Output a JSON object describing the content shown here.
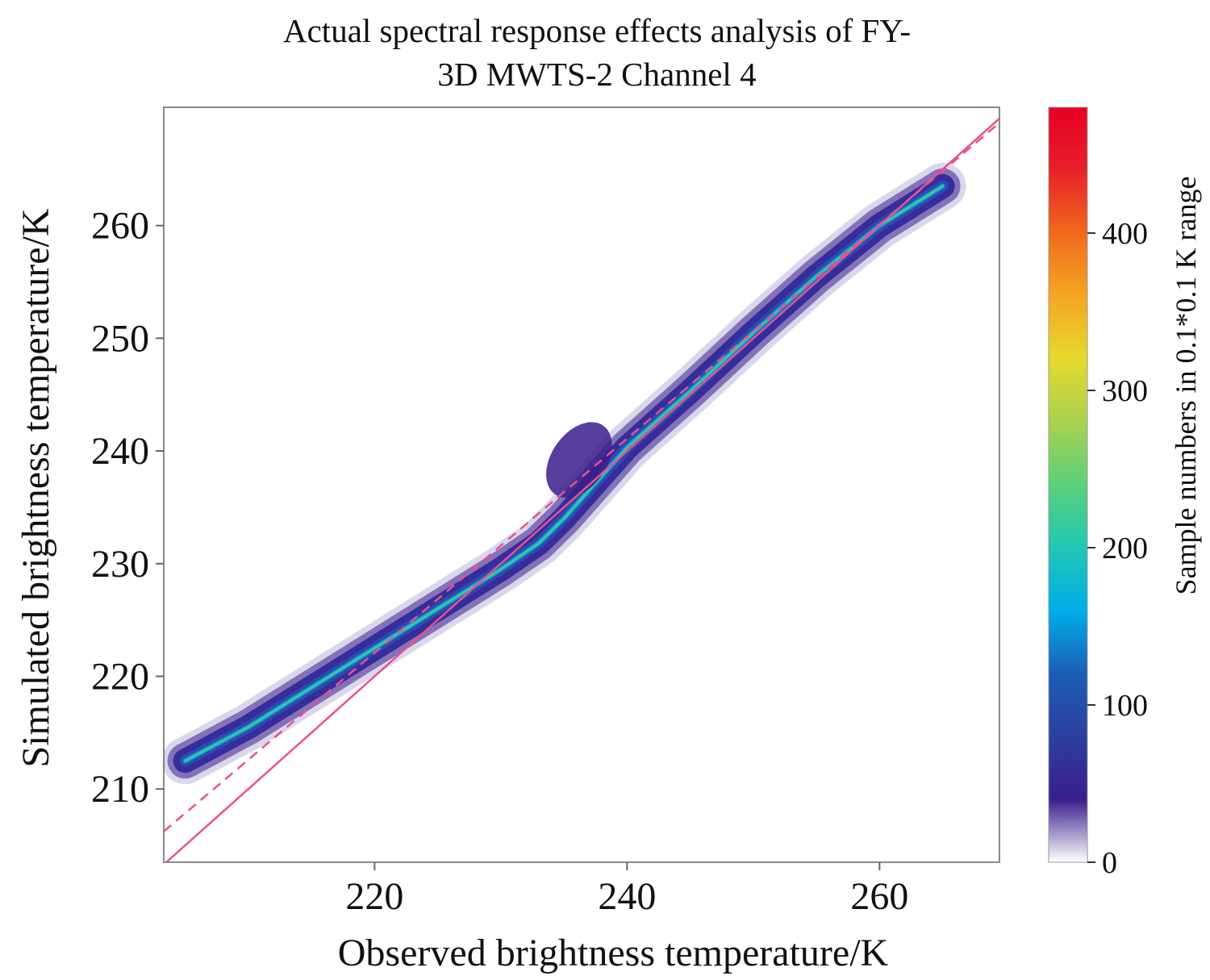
{
  "chart_data": {
    "type": "heatmap",
    "title_line1": "Actual spectral response effects analysis of FY-",
    "title_line2": "3D MWTS-2 Channel 4",
    "xlabel": "Observed brightness temperature/K",
    "ylabel": "Simulated brightness temperature/K",
    "xlim": [
      203.3,
      269.5
    ],
    "ylim": [
      203.5,
      270.5
    ],
    "xticks": [
      220,
      240,
      260
    ],
    "yticks": [
      210,
      220,
      230,
      240,
      250,
      260
    ],
    "grid": false,
    "density_ridge": [
      {
        "x": 205,
        "y": 212.5
      },
      {
        "x": 210,
        "y": 215.5
      },
      {
        "x": 215,
        "y": 219
      },
      {
        "x": 220,
        "y": 222.5
      },
      {
        "x": 225,
        "y": 226
      },
      {
        "x": 230,
        "y": 229.5
      },
      {
        "x": 233,
        "y": 231.8
      },
      {
        "x": 235,
        "y": 234
      },
      {
        "x": 240,
        "y": 240.3
      },
      {
        "x": 245,
        "y": 245.3
      },
      {
        "x": 250,
        "y": 250.5
      },
      {
        "x": 255,
        "y": 255.5
      },
      {
        "x": 260,
        "y": 260
      },
      {
        "x": 265,
        "y": 263.5
      }
    ],
    "reference_lines": [
      {
        "kind": "identity",
        "style": "solid",
        "color": "#e8508f",
        "slope": 1,
        "intercept": 0
      },
      {
        "kind": "fit",
        "style": "dashed",
        "color": "#e8508f",
        "slope": 0.95,
        "intercept": 13.1
      }
    ],
    "colorbar": {
      "label": "Sample numbers in 0.1*0.1 K range",
      "min": 0,
      "max": 480,
      "ticks": [
        0,
        100,
        200,
        300,
        400
      ],
      "colors": [
        "#ffffff",
        "#3a1f8c",
        "#2d3f9e",
        "#1c5eb5",
        "#00aee8",
        "#22c7b5",
        "#5ccf7a",
        "#a8d24e",
        "#e6d92d",
        "#f5a623",
        "#f06a1d",
        "#e8202a",
        "#e60026"
      ]
    }
  }
}
